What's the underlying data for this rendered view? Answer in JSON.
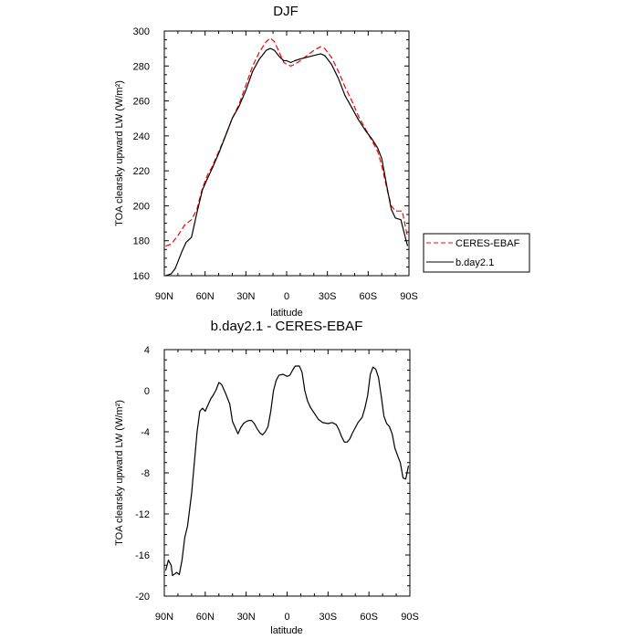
{
  "chart_data": [
    {
      "type": "line",
      "title": "DJF",
      "xlabel": "latitude",
      "ylabel": "TOA clearsky upward LW (W/m²)",
      "xlim": [
        90,
        -90
      ],
      "ylim": [
        160,
        300
      ],
      "x_ticks": [
        "90N",
        "60N",
        "30N",
        "0",
        "30S",
        "60S",
        "90S"
      ],
      "y_ticks": [
        "160",
        "180",
        "200",
        "220",
        "240",
        "260",
        "280",
        "300"
      ],
      "legend_position": "right-bottom, outside",
      "series": [
        {
          "name": "CERES-EBAF",
          "color": "#ff0000",
          "dash": "dashed",
          "points": [
            [
              89,
              177
            ],
            [
              85,
              178
            ],
            [
              80,
              183
            ],
            [
              75,
              189
            ],
            [
              70,
              192
            ],
            [
              66,
              198
            ],
            [
              62,
              210
            ],
            [
              58,
              218
            ],
            [
              55,
              222
            ],
            [
              50,
              231
            ],
            [
              45,
              240
            ],
            [
              40,
              250
            ],
            [
              35,
              258
            ],
            [
              30,
              269
            ],
            [
              25,
              280
            ],
            [
              20,
              288
            ],
            [
              15,
              294
            ],
            [
              12,
              296
            ],
            [
              9,
              294
            ],
            [
              5,
              287
            ],
            [
              2,
              282
            ],
            [
              0,
              281
            ],
            [
              -3,
              280
            ],
            [
              -6,
              281
            ],
            [
              -10,
              283
            ],
            [
              -15,
              286
            ],
            [
              -20,
              289
            ],
            [
              -25,
              291
            ],
            [
              -28,
              290
            ],
            [
              -33,
              285
            ],
            [
              -38,
              277
            ],
            [
              -43,
              268
            ],
            [
              -48,
              260
            ],
            [
              -53,
              251
            ],
            [
              -58,
              244
            ],
            [
              -63,
              237
            ],
            [
              -67,
              231
            ],
            [
              -70,
              223
            ],
            [
              -74,
              209
            ],
            [
              -77,
              200
            ],
            [
              -80,
              197
            ],
            [
              -85,
              197
            ],
            [
              -89,
              182
            ]
          ]
        },
        {
          "name": "b.day2.1",
          "color": "#000000",
          "dash": "solid",
          "points": [
            [
              89,
              160
            ],
            [
              85,
              161
            ],
            [
              82,
              164
            ],
            [
              80,
              168
            ],
            [
              77,
              174
            ],
            [
              74,
              179
            ],
            [
              70,
              182
            ],
            [
              66,
              196
            ],
            [
              62,
              209
            ],
            [
              58,
              216
            ],
            [
              55,
              221
            ],
            [
              50,
              230
            ],
            [
              45,
              240
            ],
            [
              40,
              250
            ],
            [
              35,
              257
            ],
            [
              30,
              266
            ],
            [
              25,
              277
            ],
            [
              20,
              284
            ],
            [
              15,
              289
            ],
            [
              12,
              290
            ],
            [
              9,
              289
            ],
            [
              5,
              285
            ],
            [
              2,
              283
            ],
            [
              0,
              283
            ],
            [
              -3,
              282
            ],
            [
              -6,
              283
            ],
            [
              -10,
              284
            ],
            [
              -15,
              285
            ],
            [
              -20,
              286
            ],
            [
              -25,
              287
            ],
            [
              -28,
              286
            ],
            [
              -33,
              281
            ],
            [
              -38,
              273
            ],
            [
              -43,
              263
            ],
            [
              -48,
              256
            ],
            [
              -53,
              249
            ],
            [
              -58,
              243
            ],
            [
              -63,
              238
            ],
            [
              -67,
              233
            ],
            [
              -70,
              227
            ],
            [
              -74,
              210
            ],
            [
              -77,
              198
            ],
            [
              -80,
              193
            ],
            [
              -84,
              192
            ],
            [
              -87,
              183
            ],
            [
              -89,
              177
            ]
          ]
        }
      ]
    },
    {
      "type": "line",
      "title": "b.day2.1 - CERES-EBAF",
      "xlabel": "latitude",
      "ylabel": "TOA clearsky upward LW (W/m²)",
      "xlim": [
        90,
        -90
      ],
      "ylim": [
        -20,
        4
      ],
      "x_ticks": [
        "90N",
        "60N",
        "30N",
        "0",
        "30S",
        "60S",
        "90S"
      ],
      "y_ticks": [
        "-20",
        "-16",
        "-12",
        "-8",
        "-4",
        "0",
        "4"
      ],
      "series": [
        {
          "color": "#000000",
          "dash": "solid",
          "points": [
            [
              89,
              -17.5
            ],
            [
              87,
              -16.5
            ],
            [
              85,
              -17.0
            ],
            [
              84,
              -18.0
            ],
            [
              82,
              -17.8
            ],
            [
              81,
              -17.7
            ],
            [
              79,
              -17.9
            ],
            [
              77,
              -16.5
            ],
            [
              75,
              -14.3
            ],
            [
              73,
              -13.2
            ],
            [
              70,
              -10.0
            ],
            [
              68,
              -7.0
            ],
            [
              66,
              -4.0
            ],
            [
              64,
              -2.0
            ],
            [
              62,
              -1.7
            ],
            [
              60,
              -2.0
            ],
            [
              58,
              -1.4
            ],
            [
              56,
              -0.8
            ],
            [
              54,
              -0.4
            ],
            [
              52,
              0.1
            ],
            [
              50,
              0.8
            ],
            [
              48,
              0.6
            ],
            [
              45,
              -0.3
            ],
            [
              42,
              -1.3
            ],
            [
              40,
              -3.0
            ],
            [
              38,
              -3.6
            ],
            [
              36,
              -4.2
            ],
            [
              34,
              -3.6
            ],
            [
              32,
              -3.2
            ],
            [
              30,
              -3.0
            ],
            [
              28,
              -2.9
            ],
            [
              26,
              -2.9
            ],
            [
              24,
              -3.2
            ],
            [
              22,
              -3.7
            ],
            [
              20,
              -4.1
            ],
            [
              18,
              -4.3
            ],
            [
              16,
              -4.0
            ],
            [
              14,
              -3.5
            ],
            [
              12,
              -2.0
            ],
            [
              10,
              0.0
            ],
            [
              8,
              1.0
            ],
            [
              6,
              1.5
            ],
            [
              3,
              1.6
            ],
            [
              0,
              1.4
            ],
            [
              -2,
              1.5
            ],
            [
              -4,
              2.0
            ],
            [
              -6,
              2.4
            ],
            [
              -9,
              2.4
            ],
            [
              -11,
              1.8
            ],
            [
              -13,
              0.0
            ],
            [
              -15,
              -1.0
            ],
            [
              -17,
              -1.6
            ],
            [
              -20,
              -2.2
            ],
            [
              -23,
              -2.8
            ],
            [
              -26,
              -3.1
            ],
            [
              -30,
              -3.2
            ],
            [
              -33,
              -3.1
            ],
            [
              -36,
              -3.3
            ],
            [
              -38,
              -3.8
            ],
            [
              -40,
              -4.5
            ],
            [
              -42,
              -5.0
            ],
            [
              -44,
              -5.0
            ],
            [
              -46,
              -4.7
            ],
            [
              -48,
              -4.1
            ],
            [
              -50,
              -3.6
            ],
            [
              -52,
              -3.1
            ],
            [
              -55,
              -2.6
            ],
            [
              -57,
              -1.7
            ],
            [
              -59,
              -0.5
            ],
            [
              -61,
              1.6
            ],
            [
              -63,
              2.3
            ],
            [
              -65,
              2.1
            ],
            [
              -67,
              1.3
            ],
            [
              -69,
              -0.5
            ],
            [
              -71,
              -2.5
            ],
            [
              -73,
              -3.2
            ],
            [
              -75,
              -3.5
            ],
            [
              -77,
              -4.2
            ],
            [
              -79,
              -5.6
            ],
            [
              -81,
              -6.3
            ],
            [
              -83,
              -7.0
            ],
            [
              -85,
              -8.5
            ],
            [
              -87,
              -8.6
            ],
            [
              -89,
              -7.3
            ]
          ]
        }
      ]
    }
  ]
}
